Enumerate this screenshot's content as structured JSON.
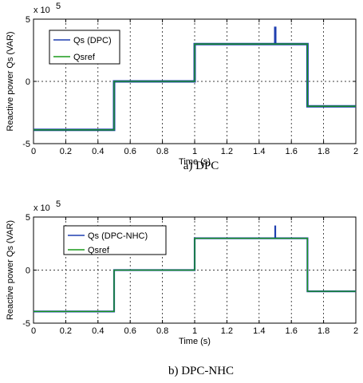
{
  "chart_data": [
    {
      "type": "line",
      "caption": "a) DPC",
      "xlabel": "Time (s)",
      "ylabel": "Reactive power Qs (VAR)",
      "y_exponent_label": "x 10",
      "y_exponent": "5",
      "xlim": [
        0,
        2
      ],
      "ylim": [
        -5,
        5
      ],
      "xticks": [
        "0",
        "0.2",
        "0.4",
        "0.6",
        "0.8",
        "1",
        "1.2",
        "1.4",
        "1.6",
        "1.8",
        "2"
      ],
      "yticks": [
        "-5",
        "0",
        "5"
      ],
      "grid": true,
      "legend_position": "top-left",
      "series": [
        {
          "name": "Qs (DPC)",
          "color": "#1f3fb0",
          "x": [
            0,
            0.5,
            0.5,
            1.0,
            1.0,
            1.5,
            1.5,
            1.5,
            1.7,
            1.7,
            2.0
          ],
          "y": [
            -3.9,
            -3.9,
            0,
            0,
            3.0,
            3.0,
            4.4,
            3.0,
            3.0,
            -2.0,
            -2.0
          ]
        },
        {
          "name": "Qsref",
          "color": "#1a9a1a",
          "x": [
            0,
            0.5,
            0.5,
            1.0,
            1.0,
            1.7,
            1.7,
            2.0
          ],
          "y": [
            -3.9,
            -3.9,
            0,
            0,
            3.0,
            3.0,
            -2.0,
            -2.0
          ]
        }
      ]
    },
    {
      "type": "line",
      "caption": "b) DPC-NHC",
      "xlabel": "Time (s)",
      "ylabel": "Reactive power Qs (VAR)",
      "y_exponent_label": "x 10",
      "y_exponent": "5",
      "xlim": [
        0,
        2
      ],
      "ylim": [
        -5,
        5
      ],
      "xticks": [
        "0",
        "0.2",
        "0.4",
        "0.6",
        "0.8",
        "1",
        "1.2",
        "1.4",
        "1.6",
        "1.8",
        "2"
      ],
      "yticks": [
        "-5",
        "0",
        "5"
      ],
      "grid": true,
      "legend_position": "top-left",
      "series": [
        {
          "name": "Qs (DPC-NHC)",
          "color": "#1f3fb0",
          "x": [
            0,
            0.5,
            0.5,
            1.0,
            1.0,
            1.5,
            1.5,
            1.5,
            1.7,
            1.7,
            2.0
          ],
          "y": [
            -3.9,
            -3.9,
            0,
            0,
            3.0,
            3.0,
            4.2,
            3.0,
            3.0,
            -2.0,
            -2.0
          ]
        },
        {
          "name": "Qsref",
          "color": "#1a9a1a",
          "x": [
            0,
            0.5,
            0.5,
            1.0,
            1.0,
            1.7,
            1.7,
            2.0
          ],
          "y": [
            -3.9,
            -3.9,
            0,
            0,
            3.0,
            3.0,
            -2.0,
            -2.0
          ]
        }
      ]
    }
  ]
}
